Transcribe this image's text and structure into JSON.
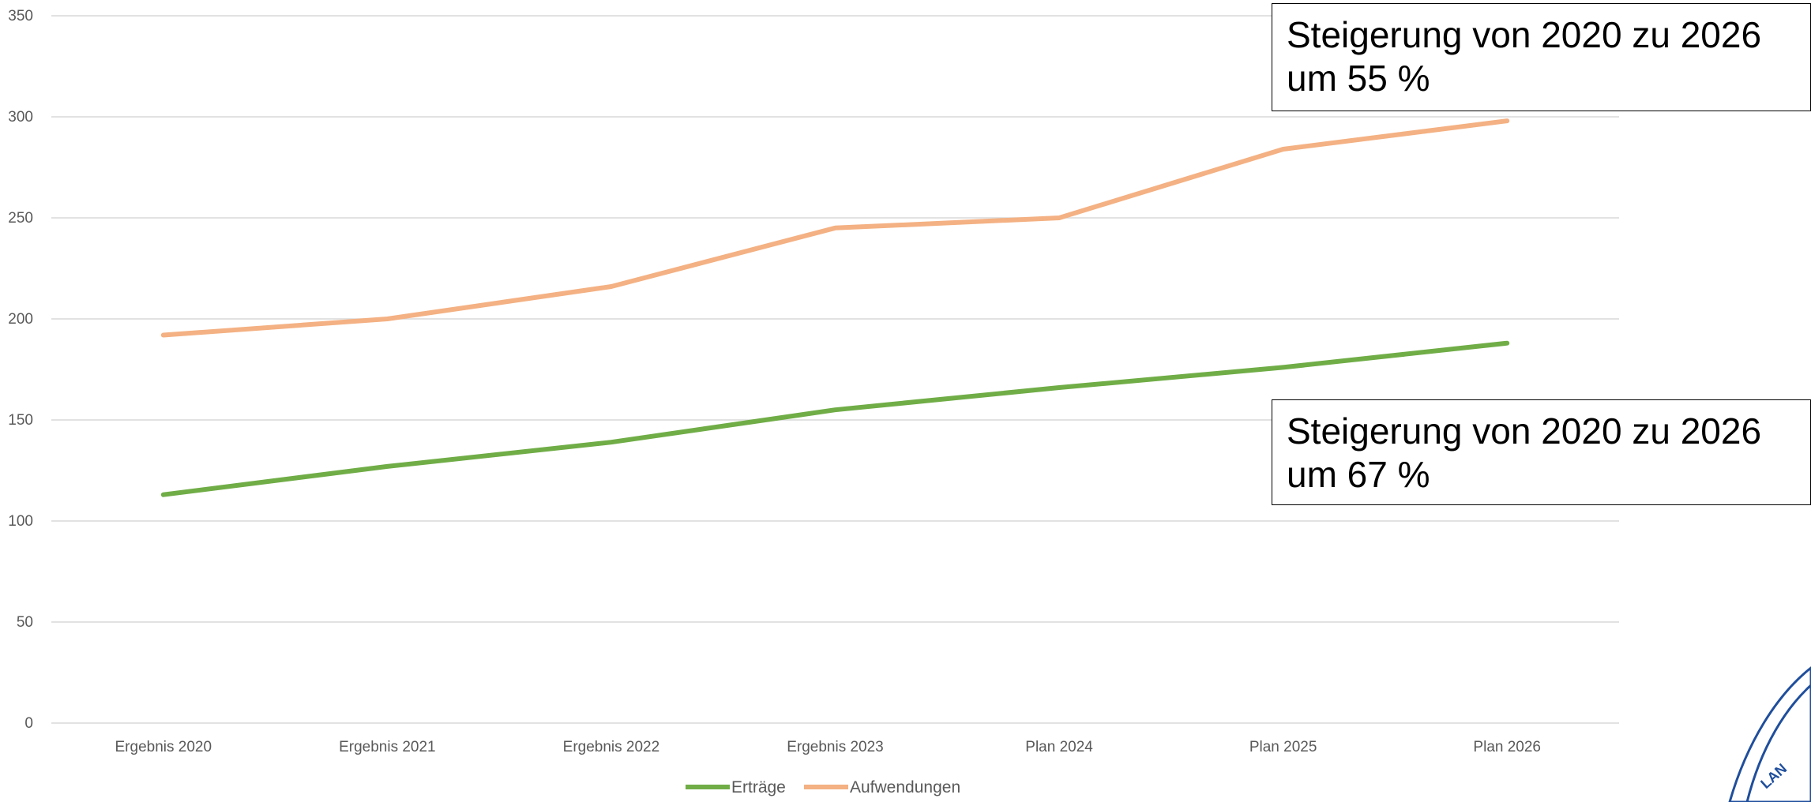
{
  "chart_data": {
    "type": "line",
    "categories": [
      "Ergebnis 2020",
      "Ergebnis 2021",
      "Ergebnis 2022",
      "Ergebnis 2023",
      "Plan 2024",
      "Plan 2025",
      "Plan 2026"
    ],
    "series": [
      {
        "name": "Erträge",
        "values": [
          113,
          127,
          139,
          155,
          166,
          176,
          188
        ],
        "color": "#70ad47"
      },
      {
        "name": "Aufwendungen",
        "values": [
          192,
          200,
          216,
          245,
          250,
          284,
          298
        ],
        "color": "#f4b183"
      }
    ],
    "ylim": [
      0,
      350
    ],
    "yticks": [
      0,
      50,
      100,
      150,
      200,
      250,
      300,
      350
    ],
    "grid": true,
    "legend": "bottom",
    "title": "",
    "xlabel": "",
    "ylabel": ""
  },
  "annotations": {
    "top": {
      "line1": "Steigerung von 2020 zu 2026",
      "line2": "um 55 %"
    },
    "bottom": {
      "line1": "Steigerung von 2020 zu 2026",
      "line2": "um 67 %"
    }
  },
  "seal": {
    "text": "LAN",
    "icon": "state-seal-icon",
    "color": "#1f4e9c"
  }
}
